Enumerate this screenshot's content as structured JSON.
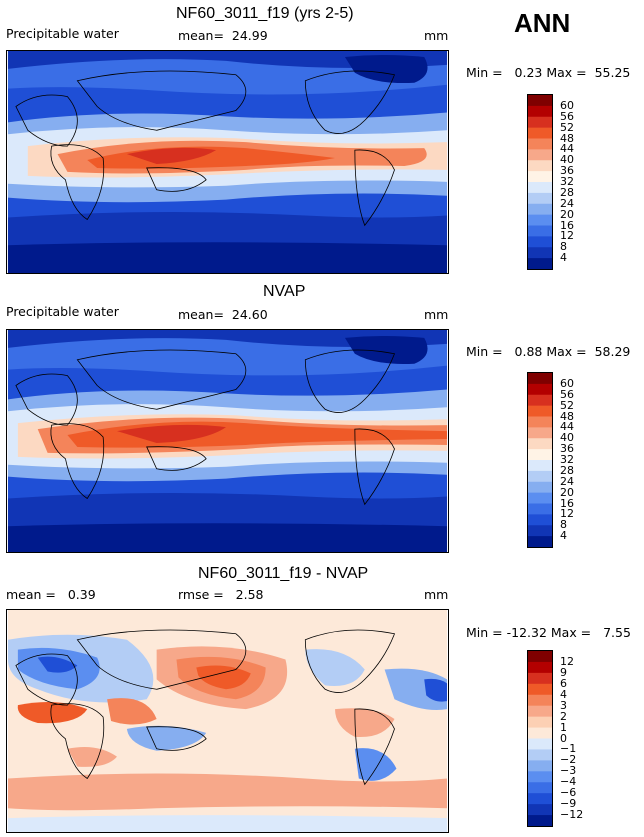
{
  "annual_label": "ANN",
  "panels": [
    {
      "title": "NF60_3011_f19 (yrs 2-5)",
      "field_label": "Precipitable water",
      "stat1": "mean=  24.99",
      "stat2": "",
      "units": "mm",
      "minmax": "Min =   0.23 Max =  55.25",
      "levels": [
        "60",
        "56",
        "52",
        "48",
        "44",
        "40",
        "36",
        "32",
        "28",
        "24",
        "20",
        "16",
        "12",
        "8",
        "4"
      ],
      "colors": [
        "#7f0000",
        "#b30000",
        "#d7301f",
        "#ef5a28",
        "#f4845a",
        "#f7a88a",
        "#fcd9c2",
        "#fff3e6",
        "#dbe9fb",
        "#b3cdf5",
        "#86aef0",
        "#5b8ef0",
        "#3a6ee6",
        "#1f4fd6",
        "#1135b5",
        "#001a8c"
      ]
    },
    {
      "title": "NVAP",
      "field_label": "Precipitable water",
      "stat1": "mean=  24.60",
      "stat2": "",
      "units": "mm",
      "minmax": "Min =   0.88 Max =  58.29",
      "levels": [
        "60",
        "56",
        "52",
        "48",
        "44",
        "40",
        "36",
        "32",
        "28",
        "24",
        "20",
        "16",
        "12",
        "8",
        "4"
      ],
      "colors": [
        "#7f0000",
        "#b30000",
        "#d7301f",
        "#ef5a28",
        "#f4845a",
        "#f7a88a",
        "#fcd9c2",
        "#fff3e6",
        "#dbe9fb",
        "#b3cdf5",
        "#86aef0",
        "#5b8ef0",
        "#3a6ee6",
        "#1f4fd6",
        "#1135b5",
        "#001a8c"
      ]
    },
    {
      "title": "NF60_3011_f19 - NVAP",
      "field_label": "",
      "stat1": "mean =   0.39",
      "stat2": "rmse =   2.58",
      "units": "mm",
      "minmax": "Min = -12.32 Max =   7.55",
      "levels": [
        "12",
        "9",
        "6",
        "4",
        "3",
        "2",
        "1",
        "0",
        "−1",
        "−2",
        "−3",
        "−4",
        "−6",
        "−9",
        "−12"
      ],
      "colors": [
        "#7f0000",
        "#b30000",
        "#d7301f",
        "#ef5a28",
        "#f4845a",
        "#f7a88a",
        "#fcd0b4",
        "#fde9d9",
        "#dbe9fb",
        "#b3cdf5",
        "#86aef0",
        "#5b8ef0",
        "#3a6ee6",
        "#1f4fd6",
        "#1135b5",
        "#001a8c"
      ]
    }
  ],
  "chart_data": [
    {
      "type": "heatmap",
      "title": "NF60_3011_f19 (yrs 2-5)",
      "subtitle": "Precipitable water",
      "units": "mm",
      "mean": 24.99,
      "min": 0.23,
      "max": 55.25,
      "contour_levels": [
        4,
        8,
        12,
        16,
        20,
        24,
        28,
        32,
        36,
        40,
        44,
        48,
        52,
        56,
        60
      ]
    },
    {
      "type": "heatmap",
      "title": "NVAP",
      "subtitle": "Precipitable water",
      "units": "mm",
      "mean": 24.6,
      "min": 0.88,
      "max": 58.29,
      "contour_levels": [
        4,
        8,
        12,
        16,
        20,
        24,
        28,
        32,
        36,
        40,
        44,
        48,
        52,
        56,
        60
      ]
    },
    {
      "type": "heatmap",
      "title": "NF60_3011_f19 - NVAP",
      "units": "mm",
      "mean": 0.39,
      "rmse": 2.58,
      "min": -12.32,
      "max": 7.55,
      "contour_levels": [
        -12,
        -9,
        -6,
        -4,
        -3,
        -2,
        -1,
        0,
        1,
        2,
        3,
        4,
        6,
        9,
        12
      ]
    }
  ]
}
